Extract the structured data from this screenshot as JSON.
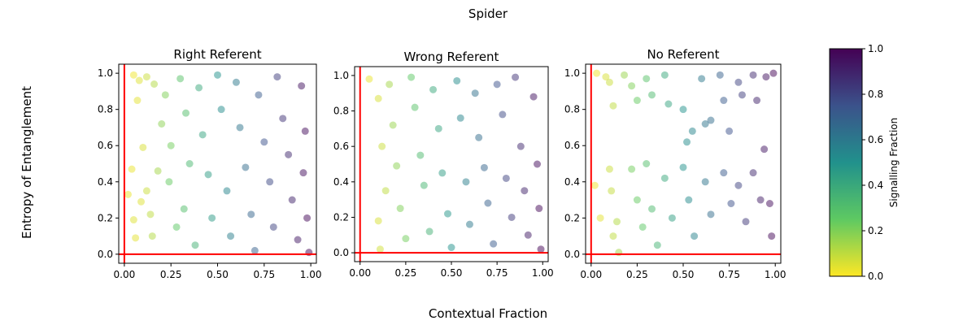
{
  "figure": {
    "title": "Spider",
    "xlabel": "Contextual Fraction",
    "ylabel": "Entropy of Entanglement"
  },
  "colorbar": {
    "label": "Signalling Fraction",
    "range": [
      0.0,
      1.0
    ],
    "ticks": [
      "0.0",
      "0.2",
      "0.4",
      "0.6",
      "0.8",
      "1.0"
    ],
    "colormap": "viridis"
  },
  "ref_line_color": "#ff0000",
  "chart_data": [
    {
      "type": "scatter",
      "title": "Right Referent",
      "xlim": [
        -0.03,
        1.03
      ],
      "ylim": [
        -0.05,
        1.05
      ],
      "xticks": [
        "0.00",
        "0.25",
        "0.50",
        "0.75",
        "1.00"
      ],
      "yticks": [
        "0.0",
        "0.2",
        "0.4",
        "0.6",
        "0.8",
        "1.0"
      ],
      "reference_lines": {
        "x": 0.0,
        "y": 0.0
      },
      "points": [
        {
          "x": 0.05,
          "y": 0.99,
          "c": 0.02
        },
        {
          "x": 0.08,
          "y": 0.96,
          "c": 0.05
        },
        {
          "x": 0.04,
          "y": 0.47,
          "c": 0.03
        },
        {
          "x": 0.02,
          "y": 0.33,
          "c": 0.03
        },
        {
          "x": 0.05,
          "y": 0.19,
          "c": 0.05
        },
        {
          "x": 0.06,
          "y": 0.09,
          "c": 0.04
        },
        {
          "x": 0.07,
          "y": 0.85,
          "c": 0.04
        },
        {
          "x": 0.1,
          "y": 0.59,
          "c": 0.06
        },
        {
          "x": 0.12,
          "y": 0.35,
          "c": 0.08
        },
        {
          "x": 0.09,
          "y": 0.29,
          "c": 0.05
        },
        {
          "x": 0.14,
          "y": 0.22,
          "c": 0.1
        },
        {
          "x": 0.12,
          "y": 0.98,
          "c": 0.08
        },
        {
          "x": 0.16,
          "y": 0.94,
          "c": 0.12
        },
        {
          "x": 0.18,
          "y": 0.46,
          "c": 0.14
        },
        {
          "x": 0.15,
          "y": 0.1,
          "c": 0.12
        },
        {
          "x": 0.2,
          "y": 0.72,
          "c": 0.18
        },
        {
          "x": 0.22,
          "y": 0.88,
          "c": 0.2
        },
        {
          "x": 0.25,
          "y": 0.6,
          "c": 0.22
        },
        {
          "x": 0.24,
          "y": 0.4,
          "c": 0.24
        },
        {
          "x": 0.28,
          "y": 0.15,
          "c": 0.26
        },
        {
          "x": 0.3,
          "y": 0.97,
          "c": 0.28
        },
        {
          "x": 0.33,
          "y": 0.78,
          "c": 0.3
        },
        {
          "x": 0.35,
          "y": 0.5,
          "c": 0.33
        },
        {
          "x": 0.32,
          "y": 0.25,
          "c": 0.3
        },
        {
          "x": 0.38,
          "y": 0.05,
          "c": 0.36
        },
        {
          "x": 0.4,
          "y": 0.92,
          "c": 0.4
        },
        {
          "x": 0.42,
          "y": 0.66,
          "c": 0.42
        },
        {
          "x": 0.45,
          "y": 0.44,
          "c": 0.45
        },
        {
          "x": 0.47,
          "y": 0.2,
          "c": 0.46
        },
        {
          "x": 0.5,
          "y": 0.99,
          "c": 0.5
        },
        {
          "x": 0.52,
          "y": 0.8,
          "c": 0.52
        },
        {
          "x": 0.55,
          "y": 0.35,
          "c": 0.55
        },
        {
          "x": 0.57,
          "y": 0.1,
          "c": 0.58
        },
        {
          "x": 0.6,
          "y": 0.95,
          "c": 0.6
        },
        {
          "x": 0.62,
          "y": 0.7,
          "c": 0.62
        },
        {
          "x": 0.65,
          "y": 0.48,
          "c": 0.65
        },
        {
          "x": 0.68,
          "y": 0.22,
          "c": 0.68
        },
        {
          "x": 0.7,
          "y": 0.02,
          "c": 0.7
        },
        {
          "x": 0.72,
          "y": 0.88,
          "c": 0.72
        },
        {
          "x": 0.75,
          "y": 0.62,
          "c": 0.75
        },
        {
          "x": 0.78,
          "y": 0.4,
          "c": 0.78
        },
        {
          "x": 0.8,
          "y": 0.15,
          "c": 0.8
        },
        {
          "x": 0.82,
          "y": 0.98,
          "c": 0.82
        },
        {
          "x": 0.85,
          "y": 0.75,
          "c": 0.85
        },
        {
          "x": 0.88,
          "y": 0.55,
          "c": 0.88
        },
        {
          "x": 0.9,
          "y": 0.3,
          "c": 0.9
        },
        {
          "x": 0.93,
          "y": 0.08,
          "c": 0.93
        },
        {
          "x": 0.95,
          "y": 0.93,
          "c": 0.95
        },
        {
          "x": 0.97,
          "y": 0.68,
          "c": 0.97
        },
        {
          "x": 0.96,
          "y": 0.45,
          "c": 0.96
        },
        {
          "x": 0.98,
          "y": 0.2,
          "c": 0.98
        },
        {
          "x": 0.99,
          "y": 0.01,
          "c": 0.99
        }
      ]
    },
    {
      "type": "scatter",
      "title": "Wrong Referent",
      "xlim": [
        -0.03,
        1.03
      ],
      "ylim": [
        -0.05,
        1.05
      ],
      "xticks": [
        "0.00",
        "0.25",
        "0.50",
        "0.75",
        "1.00"
      ],
      "yticks": [
        "0.0",
        "0.2",
        "0.4",
        "0.6",
        "0.8",
        "1.0"
      ],
      "reference_lines": {
        "x": 0.0,
        "y": 0.0
      },
      "points": [
        {
          "x": 0.05,
          "y": 0.98,
          "c": 0.03
        },
        {
          "x": 0.1,
          "y": 0.87,
          "c": 0.06
        },
        {
          "x": 0.12,
          "y": 0.6,
          "c": 0.08
        },
        {
          "x": 0.14,
          "y": 0.35,
          "c": 0.1
        },
        {
          "x": 0.1,
          "y": 0.18,
          "c": 0.06
        },
        {
          "x": 0.11,
          "y": 0.02,
          "c": 0.07
        },
        {
          "x": 0.16,
          "y": 0.95,
          "c": 0.14
        },
        {
          "x": 0.18,
          "y": 0.72,
          "c": 0.16
        },
        {
          "x": 0.2,
          "y": 0.49,
          "c": 0.18
        },
        {
          "x": 0.22,
          "y": 0.25,
          "c": 0.2
        },
        {
          "x": 0.25,
          "y": 0.08,
          "c": 0.22
        },
        {
          "x": 0.28,
          "y": 0.99,
          "c": 0.26
        },
        {
          "x": 0.3,
          "y": 0.82,
          "c": 0.28
        },
        {
          "x": 0.33,
          "y": 0.55,
          "c": 0.32
        },
        {
          "x": 0.35,
          "y": 0.38,
          "c": 0.34
        },
        {
          "x": 0.38,
          "y": 0.12,
          "c": 0.36
        },
        {
          "x": 0.4,
          "y": 0.92,
          "c": 0.4
        },
        {
          "x": 0.43,
          "y": 0.7,
          "c": 0.42
        },
        {
          "x": 0.45,
          "y": 0.45,
          "c": 0.45
        },
        {
          "x": 0.48,
          "y": 0.22,
          "c": 0.48
        },
        {
          "x": 0.5,
          "y": 0.03,
          "c": 0.5
        },
        {
          "x": 0.53,
          "y": 0.97,
          "c": 0.52
        },
        {
          "x": 0.55,
          "y": 0.76,
          "c": 0.55
        },
        {
          "x": 0.58,
          "y": 0.4,
          "c": 0.58
        },
        {
          "x": 0.6,
          "y": 0.16,
          "c": 0.6
        },
        {
          "x": 0.63,
          "y": 0.9,
          "c": 0.63
        },
        {
          "x": 0.65,
          "y": 0.65,
          "c": 0.65
        },
        {
          "x": 0.68,
          "y": 0.48,
          "c": 0.68
        },
        {
          "x": 0.7,
          "y": 0.28,
          "c": 0.7
        },
        {
          "x": 0.73,
          "y": 0.05,
          "c": 0.72
        },
        {
          "x": 0.75,
          "y": 0.95,
          "c": 0.75
        },
        {
          "x": 0.78,
          "y": 0.78,
          "c": 0.78
        },
        {
          "x": 0.8,
          "y": 0.42,
          "c": 0.8
        },
        {
          "x": 0.83,
          "y": 0.2,
          "c": 0.83
        },
        {
          "x": 0.85,
          "y": 0.99,
          "c": 0.85
        },
        {
          "x": 0.88,
          "y": 0.6,
          "c": 0.88
        },
        {
          "x": 0.9,
          "y": 0.35,
          "c": 0.9
        },
        {
          "x": 0.92,
          "y": 0.1,
          "c": 0.92
        },
        {
          "x": 0.95,
          "y": 0.88,
          "c": 0.95
        },
        {
          "x": 0.97,
          "y": 0.5,
          "c": 0.97
        },
        {
          "x": 0.98,
          "y": 0.25,
          "c": 0.98
        },
        {
          "x": 0.99,
          "y": 0.02,
          "c": 0.99
        }
      ]
    },
    {
      "type": "scatter",
      "title": "No Referent",
      "xlim": [
        -0.03,
        1.03
      ],
      "ylim": [
        -0.05,
        1.05
      ],
      "xticks": [
        "0.00",
        "0.25",
        "0.50",
        "0.75",
        "1.00"
      ],
      "yticks": [
        "0.0",
        "0.2",
        "0.4",
        "0.6",
        "0.8",
        "1.0"
      ],
      "reference_lines": {
        "x": 0.0,
        "y": 0.0
      },
      "points": [
        {
          "x": 0.03,
          "y": 1.0,
          "c": 0.02
        },
        {
          "x": 0.02,
          "y": 0.38,
          "c": 0.02
        },
        {
          "x": 0.05,
          "y": 0.2,
          "c": 0.04
        },
        {
          "x": 0.08,
          "y": 0.98,
          "c": 0.06
        },
        {
          "x": 0.1,
          "y": 0.95,
          "c": 0.08
        },
        {
          "x": 0.12,
          "y": 0.82,
          "c": 0.1
        },
        {
          "x": 0.1,
          "y": 0.47,
          "c": 0.08
        },
        {
          "x": 0.11,
          "y": 0.35,
          "c": 0.09
        },
        {
          "x": 0.14,
          "y": 0.18,
          "c": 0.12
        },
        {
          "x": 0.12,
          "y": 0.1,
          "c": 0.1
        },
        {
          "x": 0.15,
          "y": 0.01,
          "c": 0.14
        },
        {
          "x": 0.18,
          "y": 0.99,
          "c": 0.16
        },
        {
          "x": 0.22,
          "y": 0.93,
          "c": 0.2
        },
        {
          "x": 0.25,
          "y": 0.85,
          "c": 0.24
        },
        {
          "x": 0.22,
          "y": 0.47,
          "c": 0.22
        },
        {
          "x": 0.25,
          "y": 0.3,
          "c": 0.24
        },
        {
          "x": 0.28,
          "y": 0.15,
          "c": 0.26
        },
        {
          "x": 0.3,
          "y": 0.97,
          "c": 0.28
        },
        {
          "x": 0.33,
          "y": 0.88,
          "c": 0.32
        },
        {
          "x": 0.3,
          "y": 0.5,
          "c": 0.3
        },
        {
          "x": 0.33,
          "y": 0.25,
          "c": 0.32
        },
        {
          "x": 0.36,
          "y": 0.05,
          "c": 0.35
        },
        {
          "x": 0.4,
          "y": 0.99,
          "c": 0.4
        },
        {
          "x": 0.42,
          "y": 0.83,
          "c": 0.42
        },
        {
          "x": 0.4,
          "y": 0.42,
          "c": 0.4
        },
        {
          "x": 0.44,
          "y": 0.2,
          "c": 0.44
        },
        {
          "x": 0.5,
          "y": 0.8,
          "c": 0.5
        },
        {
          "x": 0.52,
          "y": 0.62,
          "c": 0.52
        },
        {
          "x": 0.55,
          "y": 0.68,
          "c": 0.55
        },
        {
          "x": 0.5,
          "y": 0.48,
          "c": 0.5
        },
        {
          "x": 0.53,
          "y": 0.3,
          "c": 0.53
        },
        {
          "x": 0.56,
          "y": 0.1,
          "c": 0.56
        },
        {
          "x": 0.6,
          "y": 0.97,
          "c": 0.6
        },
        {
          "x": 0.62,
          "y": 0.72,
          "c": 0.62
        },
        {
          "x": 0.65,
          "y": 0.74,
          "c": 0.65
        },
        {
          "x": 0.62,
          "y": 0.4,
          "c": 0.62
        },
        {
          "x": 0.65,
          "y": 0.22,
          "c": 0.65
        },
        {
          "x": 0.7,
          "y": 0.99,
          "c": 0.7
        },
        {
          "x": 0.72,
          "y": 0.85,
          "c": 0.72
        },
        {
          "x": 0.75,
          "y": 0.68,
          "c": 0.75
        },
        {
          "x": 0.72,
          "y": 0.45,
          "c": 0.72
        },
        {
          "x": 0.76,
          "y": 0.28,
          "c": 0.76
        },
        {
          "x": 0.8,
          "y": 0.95,
          "c": 0.8
        },
        {
          "x": 0.82,
          "y": 0.88,
          "c": 0.82
        },
        {
          "x": 0.8,
          "y": 0.38,
          "c": 0.8
        },
        {
          "x": 0.84,
          "y": 0.18,
          "c": 0.84
        },
        {
          "x": 0.88,
          "y": 0.99,
          "c": 0.88
        },
        {
          "x": 0.9,
          "y": 0.85,
          "c": 0.9
        },
        {
          "x": 0.88,
          "y": 0.45,
          "c": 0.88
        },
        {
          "x": 0.92,
          "y": 0.3,
          "c": 0.92
        },
        {
          "x": 0.94,
          "y": 0.58,
          "c": 0.94
        },
        {
          "x": 0.95,
          "y": 0.98,
          "c": 0.95
        },
        {
          "x": 0.97,
          "y": 0.28,
          "c": 0.97
        },
        {
          "x": 0.98,
          "y": 0.1,
          "c": 0.98
        },
        {
          "x": 0.99,
          "y": 1.0,
          "c": 0.99
        }
      ]
    }
  ]
}
